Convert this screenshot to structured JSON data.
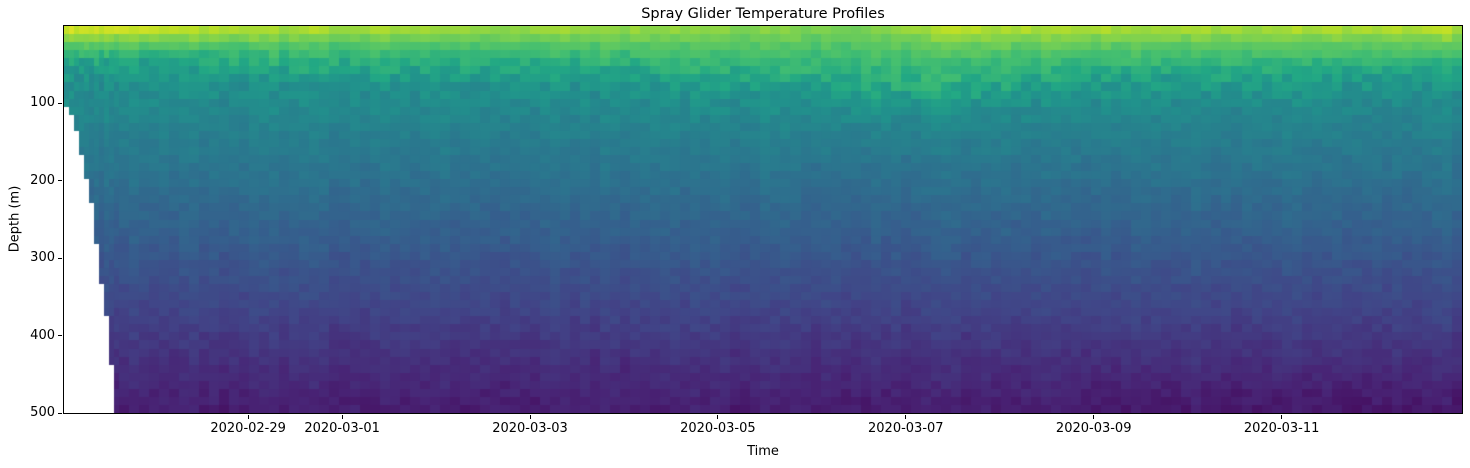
{
  "chart_data": {
    "type": "heatmap",
    "title": "Spray Glider Temperature Profiles",
    "xlabel": "Time",
    "ylabel": "Depth (m)",
    "colormap": "viridis",
    "colormap_anchors": [
      "#440154",
      "#482475",
      "#414487",
      "#355f8d",
      "#2a788e",
      "#21918c",
      "#22a884",
      "#44bf70",
      "#7ad151",
      "#bddf26",
      "#fde725"
    ],
    "value_scale_note": "no colorbar shown in figure; values are normalized colormap units, 1 = warmest surface water, 0 = coldest deep water",
    "time_origin": "2020-02-27",
    "time_domain_days": [
      0.04,
      14.92
    ],
    "x_ticks": [
      {
        "day": 2,
        "label": "2020-02-29"
      },
      {
        "day": 3,
        "label": "2020-03-01"
      },
      {
        "day": 5,
        "label": "2020-03-03"
      },
      {
        "day": 7,
        "label": "2020-03-05"
      },
      {
        "day": 9,
        "label": "2020-03-07"
      },
      {
        "day": 11,
        "label": "2020-03-09"
      },
      {
        "day": 13,
        "label": "2020-03-11"
      }
    ],
    "y_ticks": [
      {
        "depth": 100,
        "label": "100"
      },
      {
        "depth": 200,
        "label": "200"
      },
      {
        "depth": 300,
        "label": "300"
      },
      {
        "depth": 400,
        "label": "400"
      },
      {
        "depth": 500,
        "label": "500"
      }
    ],
    "ylim": [
      500,
      0
    ],
    "grid": false,
    "legend": "none",
    "depth_bins_m": [
      0,
      25,
      50,
      75,
      100,
      125,
      150,
      175,
      200,
      225,
      250,
      275,
      300,
      325,
      350,
      375,
      400,
      425,
      450,
      475,
      500
    ],
    "day_columns": [
      "2020-02-27",
      "2020-02-28",
      "2020-02-29",
      "2020-03-01",
      "2020-03-02",
      "2020-03-03",
      "2020-03-04",
      "2020-03-05",
      "2020-03-06",
      "2020-03-07",
      "2020-03-08",
      "2020-03-09",
      "2020-03-10",
      "2020-03-11",
      "2020-03-12"
    ],
    "values_normalized": [
      [
        0.97,
        0.74,
        0.56,
        0.49,
        0.47,
        0.445,
        0.42,
        0.395,
        0.37,
        0.345,
        0.32,
        0.295,
        0.27,
        0.245,
        0.22,
        0.195,
        0.17,
        0.145,
        0.12,
        0.1,
        0.08
      ],
      [
        0.92,
        0.73,
        0.58,
        0.5,
        0.47,
        0.445,
        0.42,
        0.395,
        0.37,
        0.345,
        0.32,
        0.295,
        0.27,
        0.245,
        0.22,
        0.195,
        0.17,
        0.145,
        0.12,
        0.1,
        0.08
      ],
      [
        0.9,
        0.73,
        0.6,
        0.5,
        0.47,
        0.445,
        0.42,
        0.395,
        0.37,
        0.345,
        0.32,
        0.295,
        0.27,
        0.245,
        0.22,
        0.195,
        0.17,
        0.145,
        0.12,
        0.1,
        0.08
      ],
      [
        0.88,
        0.73,
        0.61,
        0.51,
        0.47,
        0.445,
        0.42,
        0.395,
        0.37,
        0.345,
        0.32,
        0.295,
        0.27,
        0.245,
        0.22,
        0.195,
        0.17,
        0.145,
        0.12,
        0.1,
        0.08
      ],
      [
        0.87,
        0.72,
        0.62,
        0.51,
        0.47,
        0.445,
        0.42,
        0.395,
        0.37,
        0.345,
        0.32,
        0.295,
        0.27,
        0.245,
        0.22,
        0.195,
        0.17,
        0.145,
        0.12,
        0.1,
        0.08
      ],
      [
        0.88,
        0.73,
        0.62,
        0.52,
        0.47,
        0.445,
        0.42,
        0.395,
        0.37,
        0.345,
        0.32,
        0.295,
        0.27,
        0.245,
        0.22,
        0.195,
        0.17,
        0.145,
        0.12,
        0.1,
        0.08
      ],
      [
        0.86,
        0.73,
        0.64,
        0.53,
        0.48,
        0.445,
        0.42,
        0.395,
        0.37,
        0.345,
        0.32,
        0.295,
        0.27,
        0.245,
        0.22,
        0.195,
        0.17,
        0.145,
        0.12,
        0.1,
        0.08
      ],
      [
        0.84,
        0.73,
        0.66,
        0.57,
        0.49,
        0.45,
        0.42,
        0.395,
        0.37,
        0.345,
        0.32,
        0.295,
        0.27,
        0.245,
        0.22,
        0.195,
        0.17,
        0.145,
        0.12,
        0.1,
        0.08
      ],
      [
        0.82,
        0.73,
        0.67,
        0.61,
        0.52,
        0.46,
        0.43,
        0.395,
        0.37,
        0.345,
        0.32,
        0.295,
        0.27,
        0.245,
        0.22,
        0.195,
        0.17,
        0.145,
        0.12,
        0.1,
        0.08
      ],
      [
        0.91,
        0.77,
        0.68,
        0.62,
        0.53,
        0.46,
        0.43,
        0.395,
        0.37,
        0.345,
        0.32,
        0.295,
        0.27,
        0.245,
        0.22,
        0.195,
        0.17,
        0.145,
        0.12,
        0.1,
        0.08
      ],
      [
        0.9,
        0.76,
        0.66,
        0.57,
        0.49,
        0.45,
        0.42,
        0.395,
        0.37,
        0.345,
        0.32,
        0.295,
        0.27,
        0.245,
        0.22,
        0.195,
        0.17,
        0.145,
        0.12,
        0.1,
        0.08
      ],
      [
        0.89,
        0.75,
        0.65,
        0.54,
        0.48,
        0.445,
        0.42,
        0.395,
        0.37,
        0.345,
        0.32,
        0.295,
        0.27,
        0.245,
        0.22,
        0.195,
        0.17,
        0.145,
        0.115,
        0.09,
        0.065
      ],
      [
        0.88,
        0.75,
        0.65,
        0.55,
        0.48,
        0.445,
        0.42,
        0.395,
        0.37,
        0.345,
        0.32,
        0.295,
        0.27,
        0.245,
        0.22,
        0.195,
        0.17,
        0.145,
        0.115,
        0.09,
        0.065
      ],
      [
        0.9,
        0.76,
        0.64,
        0.54,
        0.48,
        0.445,
        0.42,
        0.395,
        0.37,
        0.345,
        0.32,
        0.295,
        0.27,
        0.245,
        0.22,
        0.195,
        0.17,
        0.145,
        0.115,
        0.09,
        0.06
      ],
      [
        0.91,
        0.76,
        0.63,
        0.52,
        0.47,
        0.445,
        0.42,
        0.395,
        0.37,
        0.345,
        0.32,
        0.295,
        0.27,
        0.245,
        0.22,
        0.195,
        0.17,
        0.145,
        0.115,
        0.09,
        0.06
      ]
    ],
    "initial_shallow_dive_max_depths_m": [
      100,
      115,
      135,
      165,
      195,
      225,
      285,
      330,
      370,
      440,
      500
    ],
    "missing_data_color": "#ffffff"
  },
  "axes": {
    "spine_color": "#000000",
    "tick_color": "#000000",
    "text_color": "#000000",
    "background": "#ffffff"
  }
}
